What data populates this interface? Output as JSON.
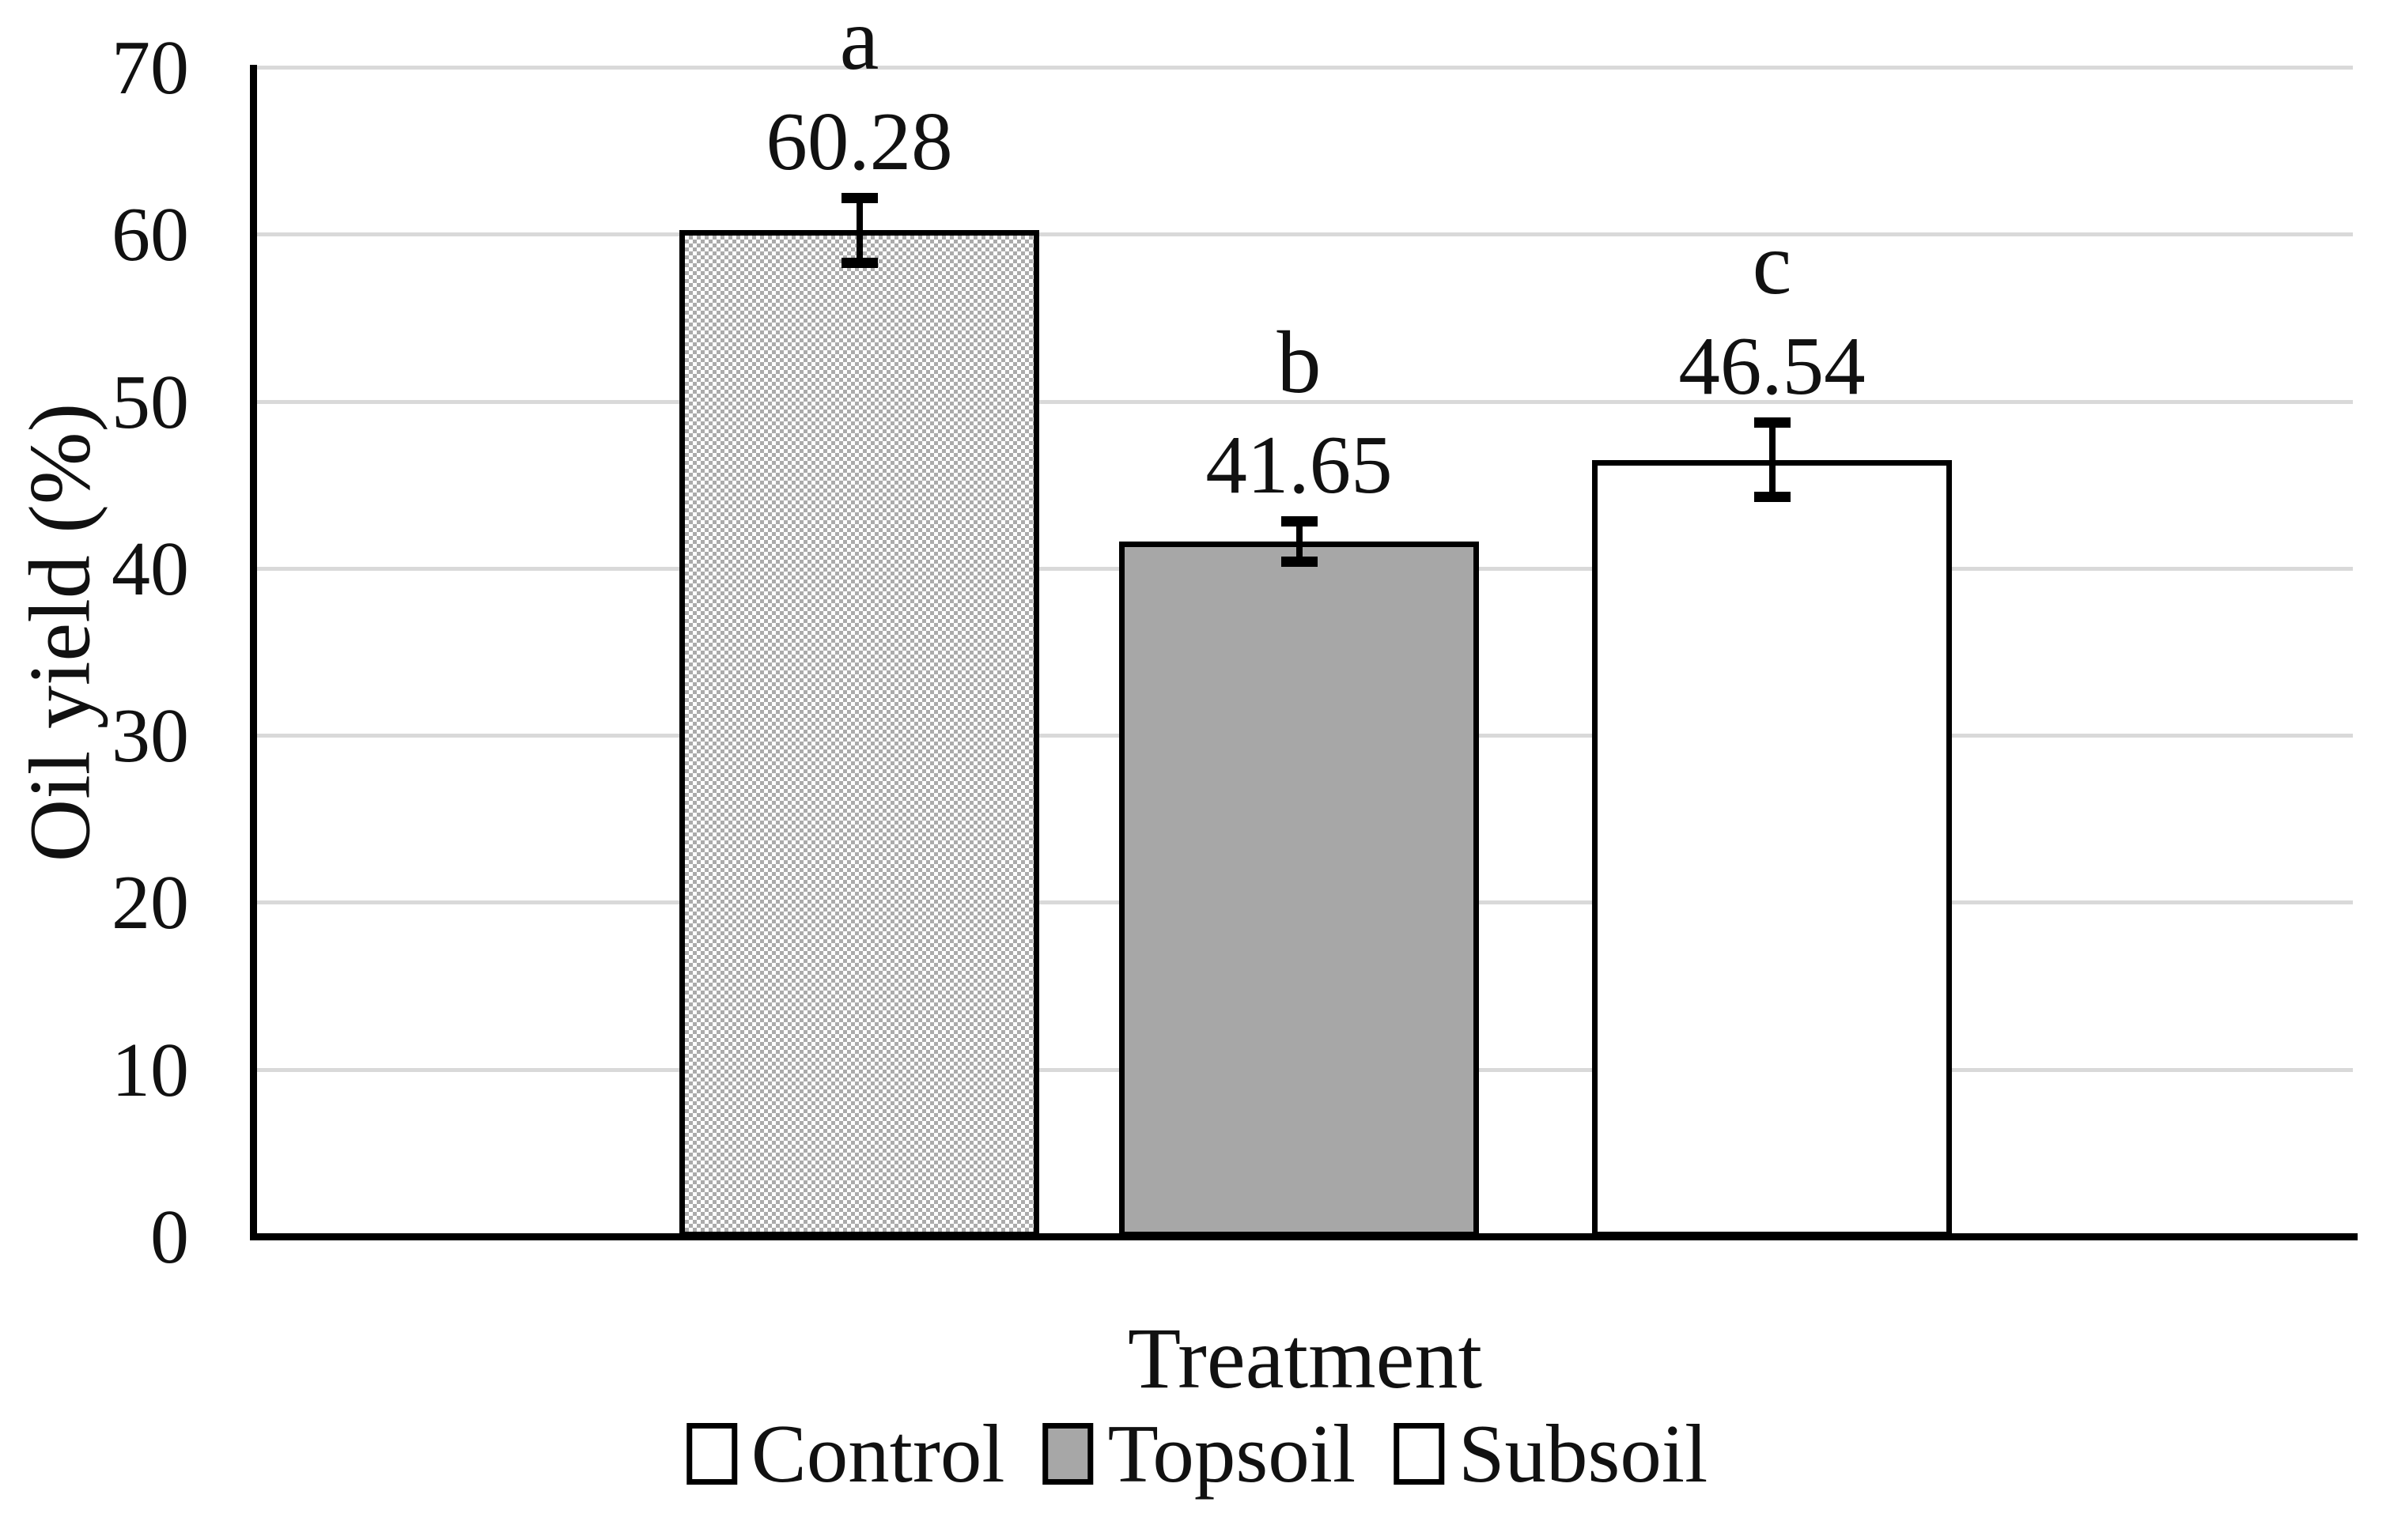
{
  "chart_data": {
    "type": "bar",
    "title": "",
    "xlabel": "Treatment",
    "ylabel": "Oil yield (%)",
    "categories": [
      "Control",
      "Topsoil",
      "Subsoil"
    ],
    "values": [
      60.28,
      41.65,
      46.54
    ],
    "value_labels": [
      "60.28",
      "41.65",
      "46.54"
    ],
    "significance_letters": [
      "a",
      "b",
      "c"
    ],
    "error_bars": [
      1.9,
      1.2,
      2.2
    ],
    "ylim": [
      0,
      70
    ],
    "yticks": [
      0,
      10,
      20,
      30,
      40,
      50,
      60,
      70
    ],
    "grid": "horizontal",
    "legend_position": "bottom-center",
    "bar_fills": [
      "checker-pattern",
      "#a7a7a7",
      "#ffffff"
    ],
    "bar_border_color": "#000000",
    "colors": {
      "gridline": "#d9d9d9",
      "axis": "#000000",
      "text": "#111111",
      "pattern_gray": "#ababab",
      "topsoil_gray": "#a7a7a7",
      "background": "#ffffff"
    }
  },
  "legend": {
    "items": [
      {
        "label": "Control",
        "swatch": "checker-pattern"
      },
      {
        "label": "Topsoil",
        "swatch": "#a7a7a7"
      },
      {
        "label": "Subsoil",
        "swatch": "#ffffff"
      }
    ]
  }
}
